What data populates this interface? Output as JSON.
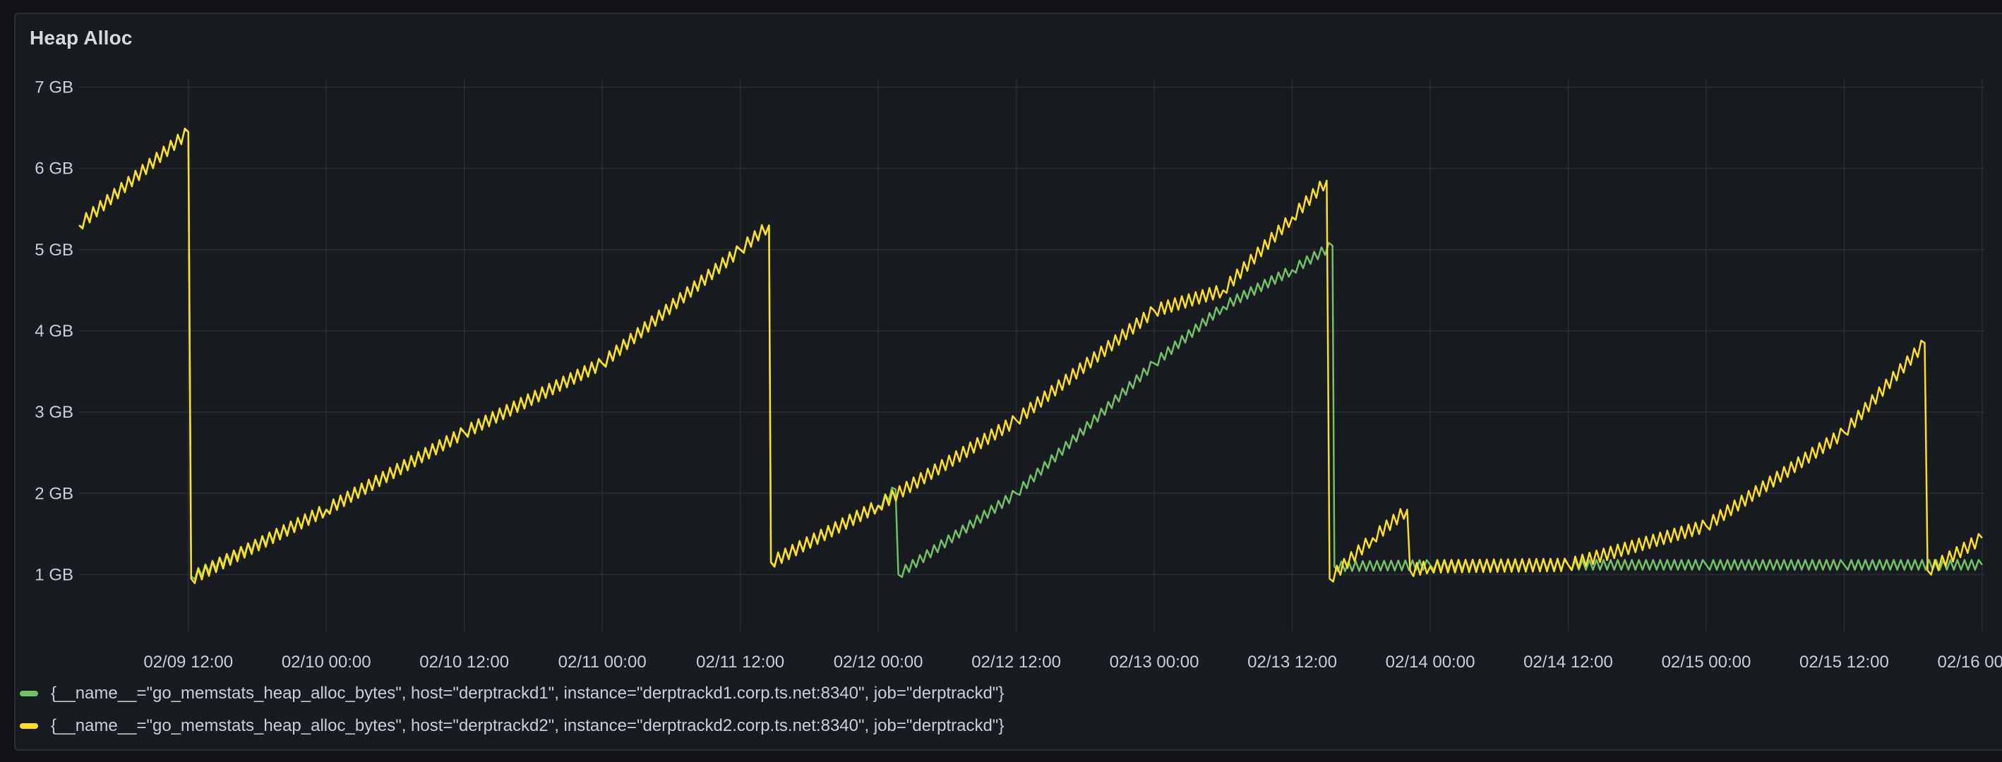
{
  "panel": {
    "title": "Heap Alloc"
  },
  "colors": {
    "series_1": "#73bf69",
    "series_2": "#fade2a",
    "grid": "#2a2d33",
    "panel_bg": "#181b1f"
  },
  "chart_data": {
    "type": "line",
    "title": "Heap Alloc",
    "xlabel": "",
    "ylabel": "",
    "y_unit": "GB",
    "y_ticks": [
      "1 GB",
      "2 GB",
      "3 GB",
      "4 GB",
      "5 GB",
      "6 GB",
      "7 GB"
    ],
    "x_ticks": [
      "02/09 12:00",
      "02/10 00:00",
      "02/10 12:00",
      "02/11 00:00",
      "02/11 12:00",
      "02/12 00:00",
      "02/12 12:00",
      "02/13 00:00",
      "02/13 12:00",
      "02/14 00:00",
      "02/14 12:00",
      "02/15 00:00",
      "02/15 12:00",
      "02/16 00:00"
    ],
    "xlim": [
      "2026-02-09 02:30",
      "2026-02-16 00:15"
    ],
    "ylim": [
      0.3,
      7.1
    ],
    "grid": true,
    "legend_position": "bottom",
    "series": [
      {
        "name": "{__name__=\"go_memstats_heap_alloc_bytes\", host=\"derptrackd1\", instance=\"derptrackd1.corp.ts.net:8340\", job=\"derptrackd\"}",
        "color": "#73bf69",
        "points": [
          [
            "2026-02-09 02:30",
            5.3
          ],
          [
            "2026-02-09 12:00",
            6.45
          ],
          [
            "2026-02-09 12:15",
            0.98
          ],
          [
            "2026-02-10 00:00",
            1.8
          ],
          [
            "2026-02-10 12:00",
            2.75
          ],
          [
            "2026-02-11 00:00",
            3.6
          ],
          [
            "2026-02-11 12:00",
            5.0
          ],
          [
            "2026-02-11 14:30",
            5.3
          ],
          [
            "2026-02-11 14:40",
            1.15
          ],
          [
            "2026-02-12 00:00",
            1.85
          ],
          [
            "2026-02-12 01:30",
            2.05
          ],
          [
            "2026-02-12 01:45",
            1.0
          ],
          [
            "2026-02-12 12:00",
            2.0
          ],
          [
            "2026-02-13 00:00",
            3.6
          ],
          [
            "2026-02-13 06:00",
            4.3
          ],
          [
            "2026-02-13 12:00",
            4.75
          ],
          [
            "2026-02-13 15:30",
            5.05
          ],
          [
            "2026-02-13 15:40",
            1.1
          ],
          [
            "2026-02-14 00:00",
            1.12
          ],
          [
            "2026-02-14 12:00",
            1.12
          ],
          [
            "2026-02-15 00:00",
            1.12
          ],
          [
            "2026-02-15 12:00",
            1.12
          ],
          [
            "2026-02-16 00:00",
            1.12
          ]
        ]
      },
      {
        "name": "{__name__=\"go_memstats_heap_alloc_bytes\", host=\"derptrackd2\", instance=\"derptrackd2.corp.ts.net:8340\", job=\"derptrackd\"}",
        "color": "#fade2a",
        "points": [
          [
            "2026-02-09 02:30",
            5.3
          ],
          [
            "2026-02-09 12:00",
            6.45
          ],
          [
            "2026-02-09 12:15",
            0.95
          ],
          [
            "2026-02-10 00:00",
            1.8
          ],
          [
            "2026-02-10 12:00",
            2.75
          ],
          [
            "2026-02-11 00:00",
            3.6
          ],
          [
            "2026-02-11 12:00",
            5.0
          ],
          [
            "2026-02-11 14:30",
            5.3
          ],
          [
            "2026-02-11 14:40",
            1.15
          ],
          [
            "2026-02-12 00:00",
            1.85
          ],
          [
            "2026-02-12 12:00",
            2.9
          ],
          [
            "2026-02-13 00:00",
            4.25
          ],
          [
            "2026-02-13 06:00",
            4.5
          ],
          [
            "2026-02-13 12:00",
            5.4
          ],
          [
            "2026-02-13 15:00",
            5.85
          ],
          [
            "2026-02-13 15:15",
            0.95
          ],
          [
            "2026-02-13 19:00",
            1.45
          ],
          [
            "2026-02-13 22:00",
            1.8
          ],
          [
            "2026-02-13 22:15",
            1.05
          ],
          [
            "2026-02-14 00:00",
            1.1
          ],
          [
            "2026-02-14 12:00",
            1.12
          ],
          [
            "2026-02-15 00:00",
            1.6
          ],
          [
            "2026-02-15 12:00",
            2.75
          ],
          [
            "2026-02-15 19:00",
            3.85
          ],
          [
            "2026-02-15 19:15",
            1.05
          ],
          [
            "2026-02-16 00:00",
            1.45
          ]
        ]
      }
    ]
  }
}
